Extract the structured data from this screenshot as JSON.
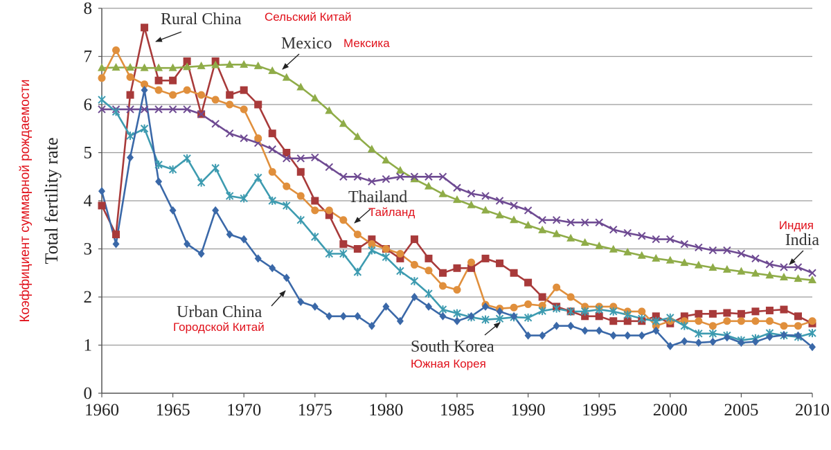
{
  "chart_data": {
    "type": "line",
    "ylabel": "Total fertility rate",
    "ylabel_translation": "Коэффициент суммарной рождаемости",
    "xlim": [
      1960,
      2010
    ],
    "ylim": [
      0,
      8
    ],
    "grid": "horizontal",
    "x_ticks": [
      "1960",
      "1965",
      "1970",
      "1975",
      "1980",
      "1985",
      "1990",
      "1995",
      "2000",
      "2005",
      "2010"
    ],
    "y_ticks": [
      "0",
      "1",
      "2",
      "3",
      "4",
      "5",
      "6",
      "7",
      "8"
    ],
    "x": [
      1960,
      1961,
      1962,
      1963,
      1964,
      1965,
      1966,
      1967,
      1968,
      1969,
      1970,
      1971,
      1972,
      1973,
      1974,
      1975,
      1976,
      1977,
      1978,
      1979,
      1980,
      1981,
      1982,
      1983,
      1984,
      1985,
      1986,
      1987,
      1988,
      1989,
      1990,
      1991,
      1992,
      1993,
      1994,
      1995,
      1996,
      1997,
      1998,
      1999,
      2000,
      2001,
      2002,
      2003,
      2004,
      2005,
      2006,
      2007,
      2008,
      2009,
      2010
    ],
    "series": [
      {
        "name": "Rural China",
        "name_translation": "Сельский Китай",
        "color": "#a83a3a",
        "marker": "square",
        "values": [
          3.9,
          3.3,
          6.2,
          7.6,
          6.5,
          6.5,
          6.9,
          5.8,
          6.9,
          6.2,
          6.3,
          6.0,
          5.4,
          5.0,
          4.6,
          4.0,
          3.7,
          3.1,
          3.0,
          3.2,
          3.0,
          2.8,
          3.2,
          2.8,
          2.5,
          2.6,
          2.6,
          2.8,
          2.7,
          2.5,
          2.3,
          2.0,
          1.8,
          1.7,
          1.6,
          1.6,
          1.5,
          1.5,
          1.5,
          1.6,
          1.45,
          1.6,
          1.65,
          1.65,
          1.67,
          1.65,
          1.7,
          1.72,
          1.74,
          1.6,
          1.45
        ]
      },
      {
        "name": "Mexico",
        "name_translation": "Мексика",
        "color": "#8fac48",
        "marker": "triangle",
        "values": [
          6.76,
          6.77,
          6.77,
          6.76,
          6.76,
          6.76,
          6.78,
          6.8,
          6.82,
          6.83,
          6.83,
          6.8,
          6.7,
          6.56,
          6.36,
          6.13,
          5.87,
          5.6,
          5.33,
          5.07,
          4.84,
          4.63,
          4.45,
          4.3,
          4.14,
          4.02,
          3.91,
          3.8,
          3.7,
          3.6,
          3.49,
          3.39,
          3.31,
          3.22,
          3.13,
          3.06,
          2.99,
          2.93,
          2.86,
          2.8,
          2.76,
          2.71,
          2.66,
          2.61,
          2.57,
          2.53,
          2.49,
          2.45,
          2.41,
          2.38,
          2.35
        ]
      },
      {
        "name": "India",
        "name_translation": "Индия",
        "color": "#6e4a92",
        "marker": "cross",
        "values": [
          5.9,
          5.9,
          5.9,
          5.9,
          5.9,
          5.9,
          5.9,
          5.8,
          5.6,
          5.4,
          5.3,
          5.2,
          5.07,
          4.88,
          4.88,
          4.9,
          4.7,
          4.5,
          4.5,
          4.4,
          4.45,
          4.5,
          4.5,
          4.5,
          4.5,
          4.27,
          4.15,
          4.1,
          4.0,
          3.9,
          3.8,
          3.6,
          3.6,
          3.55,
          3.55,
          3.55,
          3.4,
          3.33,
          3.27,
          3.2,
          3.2,
          3.1,
          3.03,
          2.97,
          2.97,
          2.9,
          2.8,
          2.68,
          2.62,
          2.62,
          2.5
        ]
      },
      {
        "name": "Thailand",
        "name_translation": "Тайланд",
        "color": "#e08f3c",
        "marker": "circle",
        "values": [
          6.55,
          7.13,
          6.57,
          6.42,
          6.3,
          6.2,
          6.3,
          6.2,
          6.1,
          6.0,
          5.9,
          5.3,
          4.6,
          4.3,
          4.1,
          3.8,
          3.8,
          3.6,
          3.3,
          3.1,
          3.0,
          2.9,
          2.67,
          2.55,
          2.23,
          2.15,
          2.72,
          1.84,
          1.76,
          1.78,
          1.85,
          1.82,
          2.2,
          2.0,
          1.8,
          1.8,
          1.8,
          1.7,
          1.7,
          1.4,
          1.5,
          1.5,
          1.5,
          1.4,
          1.5,
          1.5,
          1.5,
          1.5,
          1.4,
          1.4,
          1.5
        ]
      },
      {
        "name": "South Korea",
        "name_translation": "Южная Корея",
        "color": "#3d9bb0",
        "marker": "asterisk",
        "values": [
          6.1,
          5.85,
          5.35,
          5.5,
          4.75,
          4.65,
          4.88,
          4.38,
          4.68,
          4.1,
          4.05,
          4.48,
          4.0,
          3.9,
          3.6,
          3.25,
          2.9,
          2.9,
          2.52,
          2.97,
          2.83,
          2.54,
          2.33,
          2.07,
          1.74,
          1.66,
          1.58,
          1.53,
          1.55,
          1.58,
          1.57,
          1.71,
          1.76,
          1.7,
          1.7,
          1.74,
          1.7,
          1.63,
          1.55,
          1.5,
          1.57,
          1.4,
          1.24,
          1.24,
          1.2,
          1.1,
          1.14,
          1.25,
          1.2,
          1.17,
          1.25
        ]
      },
      {
        "name": "Urban China",
        "name_translation": "Городской Китай",
        "color": "#3a68a8",
        "marker": "diamond",
        "values": [
          4.2,
          3.1,
          4.9,
          6.3,
          4.4,
          3.8,
          3.1,
          2.9,
          3.8,
          3.3,
          3.2,
          2.8,
          2.6,
          2.4,
          1.9,
          1.8,
          1.6,
          1.6,
          1.6,
          1.4,
          1.8,
          1.5,
          2.0,
          1.8,
          1.6,
          1.5,
          1.6,
          1.8,
          1.7,
          1.6,
          1.2,
          1.2,
          1.4,
          1.4,
          1.3,
          1.3,
          1.2,
          1.2,
          1.2,
          1.3,
          0.98,
          1.08,
          1.05,
          1.07,
          1.16,
          1.05,
          1.07,
          1.17,
          1.21,
          1.2,
          0.96
        ]
      }
    ],
    "annotations": [
      {
        "series": "Rural China",
        "text": "Rural China",
        "translation": "Сельский Китай"
      },
      {
        "series": "Mexico",
        "text": "Mexico",
        "translation": "Мексика"
      },
      {
        "series": "India",
        "text": "India",
        "translation": "Индия"
      },
      {
        "series": "Thailand",
        "text": "Thailand",
        "translation": "Тайланд"
      },
      {
        "series": "South Korea",
        "text": "South Korea",
        "translation": "Южная Корея"
      },
      {
        "series": "Urban China",
        "text": "Urban China",
        "translation": "Городской Китай"
      }
    ]
  }
}
